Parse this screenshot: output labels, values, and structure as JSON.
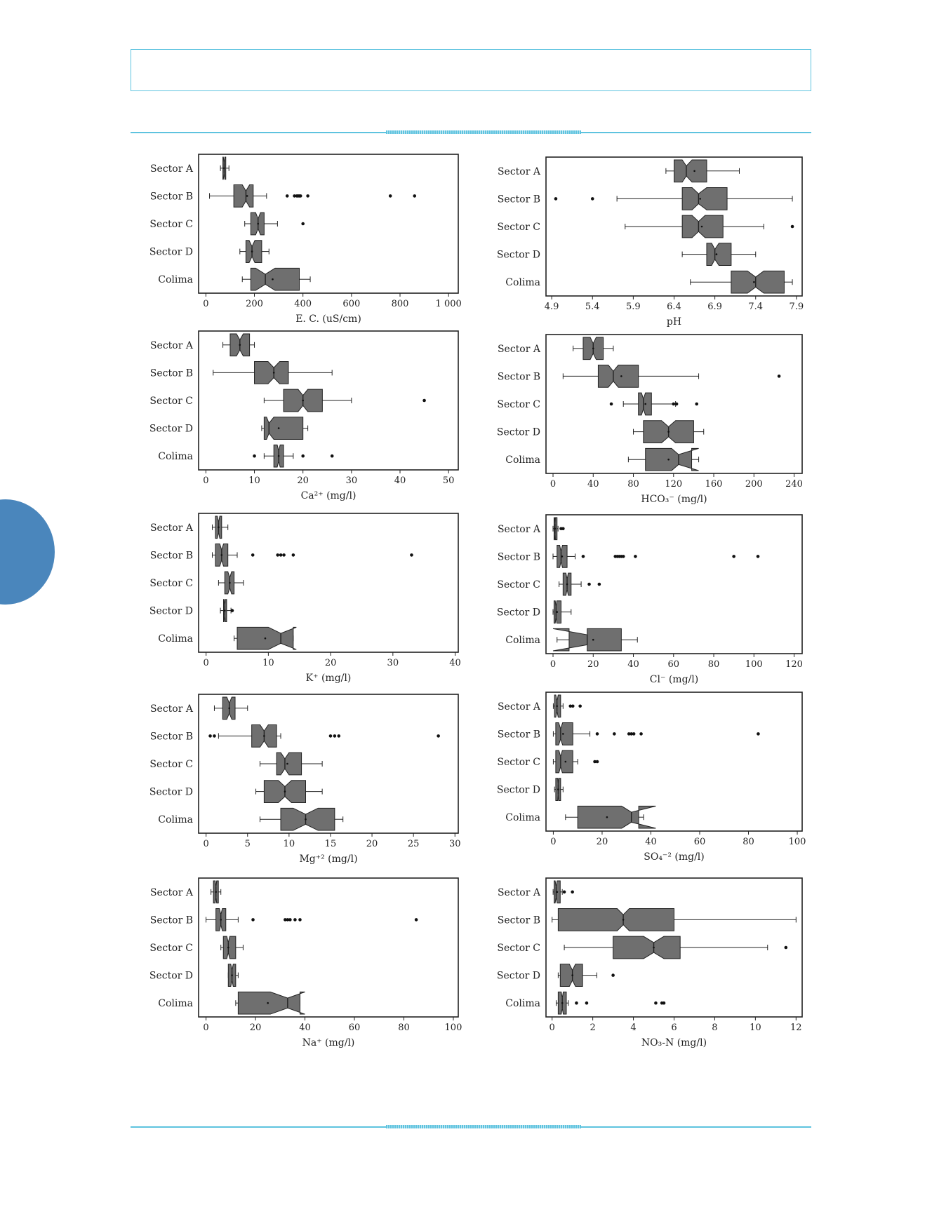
{
  "page": {
    "accent_color": "#5ec3df",
    "tab_color": "#4a86bc",
    "box_fill": "#6f6f6f"
  },
  "chart_data": [
    {
      "type": "boxplot",
      "orientation": "horizontal",
      "notched": true,
      "xlabel": "E. C. (uS/cm)",
      "xlim": [
        -30,
        1040
      ],
      "xticks": [
        0,
        200,
        400,
        600,
        800,
        1000
      ],
      "xtick_labels": [
        "0",
        "200",
        "400",
        "600",
        "800",
        "1 000"
      ],
      "categories": [
        "Sector A",
        "Sector B",
        "Sector C",
        "Sector D",
        "Colima"
      ],
      "boxes": [
        {
          "q1": 70,
          "median": 75,
          "q3": 82,
          "whisker_low": 60,
          "whisker_high": 95,
          "mean": 75,
          "notch_low": 72,
          "notch_high": 78,
          "outliers": []
        },
        {
          "q1": 115,
          "median": 165,
          "q3": 195,
          "whisker_low": 15,
          "whisker_high": 250,
          "mean": 170,
          "notch_low": 150,
          "notch_high": 180,
          "outliers": [
            335,
            365,
            375,
            380,
            385,
            390,
            420,
            760,
            860
          ]
        },
        {
          "q1": 185,
          "median": 215,
          "q3": 240,
          "whisker_low": 160,
          "whisker_high": 295,
          "mean": 215,
          "notch_low": 205,
          "notch_high": 225,
          "outliers": [
            400
          ]
        },
        {
          "q1": 165,
          "median": 190,
          "q3": 230,
          "whisker_low": 140,
          "whisker_high": 260,
          "mean": 190,
          "notch_low": 178,
          "notch_high": 202,
          "outliers": []
        },
        {
          "q1": 185,
          "median": 245,
          "q3": 385,
          "whisker_low": 150,
          "whisker_high": 430,
          "mean": 275,
          "notch_low": 205,
          "notch_high": 285,
          "outliers": []
        }
      ]
    },
    {
      "type": "boxplot",
      "orientation": "horizontal",
      "notched": true,
      "xlabel": "pH",
      "xlim": [
        4.83,
        7.97
      ],
      "xticks": [
        4.9,
        5.4,
        5.9,
        6.4,
        6.9,
        7.4,
        7.9
      ],
      "xtick_labels": [
        "4.9",
        "5.4",
        "5.9",
        "6.4",
        "6.9",
        "7.4",
        "7.9"
      ],
      "categories": [
        "Sector A",
        "Sector B",
        "Sector C",
        "Sector D",
        "Colima"
      ],
      "boxes": [
        {
          "q1": 6.4,
          "median": 6.55,
          "q3": 6.8,
          "whisker_low": 6.3,
          "whisker_high": 7.2,
          "mean": 6.65,
          "notch_low": 6.5,
          "notch_high": 6.62,
          "outliers": []
        },
        {
          "q1": 6.5,
          "median": 6.7,
          "q3": 7.05,
          "whisker_low": 5.7,
          "whisker_high": 7.85,
          "mean": 6.72,
          "notch_low": 6.62,
          "notch_high": 6.8,
          "outliers": [
            4.95,
            5.4
          ]
        },
        {
          "q1": 6.5,
          "median": 6.7,
          "q3": 7.0,
          "whisker_low": 5.8,
          "whisker_high": 7.5,
          "mean": 6.74,
          "notch_low": 6.62,
          "notch_high": 6.78,
          "outliers": [
            7.85
          ]
        },
        {
          "q1": 6.8,
          "median": 6.9,
          "q3": 7.1,
          "whisker_low": 6.5,
          "whisker_high": 7.4,
          "mean": 6.92,
          "notch_low": 6.86,
          "notch_high": 6.95,
          "outliers": []
        },
        {
          "q1": 7.1,
          "median": 7.4,
          "q3": 7.75,
          "whisker_low": 6.6,
          "whisker_high": 7.85,
          "mean": 7.38,
          "notch_low": 7.3,
          "notch_high": 7.5,
          "outliers": []
        }
      ]
    },
    {
      "type": "boxplot",
      "orientation": "horizontal",
      "notched": true,
      "xlabel": "Ca²⁺ (mg/l)",
      "xlim": [
        -1.5,
        52
      ],
      "xticks": [
        0,
        10,
        20,
        30,
        40,
        50
      ],
      "xtick_labels": [
        "0",
        "10",
        "20",
        "30",
        "40",
        "50"
      ],
      "categories": [
        "Sector A",
        "Sector B",
        "Sector C",
        "Sector D",
        "Colima"
      ],
      "boxes": [
        {
          "q1": 5,
          "median": 7,
          "q3": 9,
          "whisker_low": 3.5,
          "whisker_high": 10,
          "mean": 7,
          "notch_low": 6.3,
          "notch_high": 7.7,
          "outliers": []
        },
        {
          "q1": 10,
          "median": 14,
          "q3": 17,
          "whisker_low": 1.5,
          "whisker_high": 26,
          "mean": 14,
          "notch_low": 12.8,
          "notch_high": 15.2,
          "outliers": []
        },
        {
          "q1": 16,
          "median": 20,
          "q3": 24,
          "whisker_low": 12,
          "whisker_high": 30,
          "mean": 20,
          "notch_low": 19,
          "notch_high": 21,
          "outliers": [
            45
          ]
        },
        {
          "q1": 12,
          "median": 13,
          "q3": 20,
          "whisker_low": 11.5,
          "whisker_high": 21,
          "mean": 15,
          "notch_low": 12.5,
          "notch_high": 14,
          "outliers": []
        },
        {
          "q1": 14,
          "median": 15,
          "q3": 16,
          "whisker_low": 12,
          "whisker_high": 18,
          "mean": 15,
          "notch_low": 14.7,
          "notch_high": 15.3,
          "outliers": [
            10,
            20,
            26
          ]
        }
      ]
    },
    {
      "type": "boxplot",
      "orientation": "horizontal",
      "notched": true,
      "xlabel": "HCO₃⁻ (mg/l)",
      "xlim": [
        -7,
        248
      ],
      "xticks": [
        0,
        40,
        80,
        120,
        160,
        200,
        240
      ],
      "xtick_labels": [
        "0",
        "40",
        "80",
        "120",
        "160",
        "200",
        "240"
      ],
      "categories": [
        "Sector A",
        "Sector B",
        "Sector C",
        "Sector D",
        "Colima"
      ],
      "boxes": [
        {
          "q1": 30,
          "median": 40,
          "q3": 50,
          "whisker_low": 20,
          "whisker_high": 60,
          "mean": 40,
          "notch_low": 37,
          "notch_high": 43,
          "outliers": []
        },
        {
          "q1": 45,
          "median": 60,
          "q3": 85,
          "whisker_low": 10,
          "whisker_high": 145,
          "mean": 68,
          "notch_low": 55,
          "notch_high": 65,
          "outliers": [
            225
          ]
        },
        {
          "q1": 85,
          "median": 90,
          "q3": 98,
          "whisker_low": 70,
          "whisker_high": 122,
          "mean": 92,
          "notch_low": 88,
          "notch_high": 92,
          "outliers": [
            58,
            120,
            123,
            143
          ]
        },
        {
          "q1": 90,
          "median": 115,
          "q3": 140,
          "whisker_low": 80,
          "whisker_high": 150,
          "mean": 115,
          "notch_low": 108,
          "notch_high": 122,
          "outliers": []
        },
        {
          "q1": 92,
          "median": 125,
          "q3": 138,
          "whisker_low": 75,
          "whisker_high": 145,
          "mean": 115,
          "notch_low": 118,
          "notch_high": 145,
          "outliers": []
        }
      ]
    },
    {
      "type": "boxplot",
      "orientation": "horizontal",
      "notched": true,
      "xlabel": "K⁺ (mg/l)",
      "xlim": [
        -1.2,
        40.5
      ],
      "xticks": [
        0,
        10,
        20,
        30,
        40
      ],
      "xtick_labels": [
        "0",
        "10",
        "20",
        "30",
        "40"
      ],
      "categories": [
        "Sector A",
        "Sector B",
        "Sector C",
        "Sector D",
        "Colima"
      ],
      "boxes": [
        {
          "q1": 1.5,
          "median": 2,
          "q3": 2.5,
          "whisker_low": 1,
          "whisker_high": 3.5,
          "mean": 2,
          "notch_low": 1.8,
          "notch_high": 2.2,
          "outliers": []
        },
        {
          "q1": 1.5,
          "median": 2.5,
          "q3": 3.5,
          "whisker_low": 1,
          "whisker_high": 5,
          "mean": 2.5,
          "notch_low": 2.2,
          "notch_high": 2.8,
          "outliers": [
            7.5,
            11.5,
            12,
            12.5,
            14,
            33
          ]
        },
        {
          "q1": 3,
          "median": 3.8,
          "q3": 4.5,
          "whisker_low": 2,
          "whisker_high": 6,
          "mean": 3.8,
          "notch_low": 3.5,
          "notch_high": 4.1,
          "outliers": []
        },
        {
          "q1": 2.8,
          "median": 3,
          "q3": 3.3,
          "whisker_low": 2.3,
          "whisker_high": 4,
          "mean": 3,
          "notch_low": 2.9,
          "notch_high": 3.1,
          "outliers": [
            4.2
          ]
        },
        {
          "q1": 5,
          "median": 12,
          "q3": 14,
          "whisker_low": 4.5,
          "whisker_high": 14,
          "mean": 9.5,
          "notch_low": 10,
          "notch_high": 14.5,
          "outliers": []
        }
      ]
    },
    {
      "type": "boxplot",
      "orientation": "horizontal",
      "notched": true,
      "xlabel": "Cl⁻ (mg/l)",
      "xlim": [
        -3.5,
        124
      ],
      "xticks": [
        0,
        20,
        40,
        60,
        80,
        100,
        120
      ],
      "xtick_labels": [
        "0",
        "20",
        "40",
        "60",
        "80",
        "100",
        "120"
      ],
      "categories": [
        "Sector A",
        "Sector B",
        "Sector C",
        "Sector D",
        "Colima"
      ],
      "boxes": [
        {
          "q1": 0.5,
          "median": 1,
          "q3": 2,
          "whisker_low": 0,
          "whisker_high": 2.5,
          "mean": 1,
          "notch_low": 0.8,
          "notch_high": 1.2,
          "outliers": [
            4,
            5
          ]
        },
        {
          "q1": 2,
          "median": 4,
          "q3": 7,
          "whisker_low": 0,
          "whisker_high": 11,
          "mean": 4.5,
          "notch_low": 3.3,
          "notch_high": 4.7,
          "outliers": [
            15,
            31,
            32,
            33,
            34,
            35,
            41,
            90,
            102
          ]
        },
        {
          "q1": 5,
          "median": 7,
          "q3": 9,
          "whisker_low": 3,
          "whisker_high": 14,
          "mean": 7,
          "notch_low": 6.4,
          "notch_high": 7.6,
          "outliers": [
            18,
            23
          ]
        },
        {
          "q1": 0.5,
          "median": 1.5,
          "q3": 4,
          "whisker_low": 0,
          "whisker_high": 9,
          "mean": 2,
          "notch_low": 1.1,
          "notch_high": 1.9,
          "outliers": []
        },
        {
          "q1": 8,
          "median": 17,
          "q3": 34,
          "whisker_low": 2,
          "whisker_high": 42,
          "mean": 20,
          "notch_low": 0,
          "notch_high": 17,
          "outliers": []
        }
      ]
    },
    {
      "type": "boxplot",
      "orientation": "horizontal",
      "notched": true,
      "xlabel": "Mg⁺² (mg/l)",
      "xlim": [
        -0.9,
        30.4
      ],
      "xticks": [
        0,
        5,
        10,
        15,
        20,
        25,
        30
      ],
      "xtick_labels": [
        "0",
        "5",
        "10",
        "15",
        "20",
        "25",
        "30"
      ],
      "categories": [
        "Sector A",
        "Sector B",
        "Sector C",
        "Sector D",
        "Colima"
      ],
      "boxes": [
        {
          "q1": 2,
          "median": 2.8,
          "q3": 3.5,
          "whisker_low": 1,
          "whisker_high": 5,
          "mean": 2.8,
          "notch_low": 2.5,
          "notch_high": 3.1,
          "outliers": []
        },
        {
          "q1": 5.5,
          "median": 7,
          "q3": 8.5,
          "whisker_low": 1.5,
          "whisker_high": 9,
          "mean": 7,
          "notch_low": 6.5,
          "notch_high": 7.5,
          "outliers": [
            0.5,
            1,
            15,
            15.5,
            16,
            28
          ]
        },
        {
          "q1": 8.5,
          "median": 9.5,
          "q3": 11.5,
          "whisker_low": 6.5,
          "whisker_high": 14,
          "mean": 9.8,
          "notch_low": 9,
          "notch_high": 10,
          "outliers": []
        },
        {
          "q1": 7,
          "median": 9.5,
          "q3": 12,
          "whisker_low": 6,
          "whisker_high": 14,
          "mean": 9.5,
          "notch_low": 8.7,
          "notch_high": 10.3,
          "outliers": []
        },
        {
          "q1": 9,
          "median": 12,
          "q3": 15.5,
          "whisker_low": 6.5,
          "whisker_high": 16.5,
          "mean": 12,
          "notch_low": 10.5,
          "notch_high": 13.5,
          "outliers": []
        }
      ]
    },
    {
      "type": "boxplot",
      "orientation": "horizontal",
      "notched": true,
      "xlabel": "SO₄⁻² (mg/l)",
      "xlim": [
        -3,
        102
      ],
      "xticks": [
        0,
        20,
        40,
        60,
        80,
        100
      ],
      "xtick_labels": [
        "0",
        "20",
        "40",
        "60",
        "80",
        "100"
      ],
      "categories": [
        "Sector A",
        "Sector B",
        "Sector C",
        "Sector D",
        "Colima"
      ],
      "boxes": [
        {
          "q1": 0.5,
          "median": 1.5,
          "q3": 3,
          "whisker_low": 0,
          "whisker_high": 4,
          "mean": 1.5,
          "notch_low": 1,
          "notch_high": 2,
          "outliers": [
            7,
            8,
            11
          ]
        },
        {
          "q1": 1,
          "median": 3,
          "q3": 8,
          "whisker_low": 0,
          "whisker_high": 15,
          "mean": 4,
          "notch_low": 2.2,
          "notch_high": 3.8,
          "outliers": [
            18,
            25,
            31,
            32,
            33,
            36,
            84
          ]
        },
        {
          "q1": 1,
          "median": 3,
          "q3": 8,
          "whisker_low": 0,
          "whisker_high": 10,
          "mean": 5,
          "notch_low": 2.3,
          "notch_high": 3.7,
          "outliers": [
            17,
            18
          ]
        },
        {
          "q1": 1,
          "median": 2,
          "q3": 3,
          "whisker_low": 0.5,
          "whisker_high": 4,
          "mean": 2,
          "notch_low": 1.8,
          "notch_high": 2.2,
          "outliers": []
        },
        {
          "q1": 10,
          "median": 32,
          "q3": 35,
          "whisker_low": 5,
          "whisker_high": 37,
          "mean": 22,
          "notch_low": 28,
          "notch_high": 42,
          "outliers": []
        }
      ]
    },
    {
      "type": "boxplot",
      "orientation": "horizontal",
      "notched": true,
      "xlabel": "Na⁺ (mg/l)",
      "xlim": [
        -3,
        102
      ],
      "xticks": [
        0,
        20,
        40,
        60,
        80,
        100
      ],
      "xtick_labels": [
        "0",
        "20",
        "40",
        "60",
        "80",
        "100"
      ],
      "categories": [
        "Sector A",
        "Sector B",
        "Sector C",
        "Sector D",
        "Colima"
      ],
      "boxes": [
        {
          "q1": 3,
          "median": 4,
          "q3": 5,
          "whisker_low": 2,
          "whisker_high": 6,
          "mean": 4,
          "notch_low": 3.7,
          "notch_high": 4.3,
          "outliers": []
        },
        {
          "q1": 4,
          "median": 6,
          "q3": 8,
          "whisker_low": 0,
          "whisker_high": 13,
          "mean": 6,
          "notch_low": 5.4,
          "notch_high": 6.6,
          "outliers": [
            19,
            32,
            33,
            34,
            36,
            38,
            85
          ]
        },
        {
          "q1": 7,
          "median": 9,
          "q3": 12,
          "whisker_low": 6,
          "whisker_high": 15,
          "mean": 9,
          "notch_low": 8.4,
          "notch_high": 9.6,
          "outliers": []
        },
        {
          "q1": 9,
          "median": 10.5,
          "q3": 12,
          "whisker_low": 9,
          "whisker_high": 13,
          "mean": 10.5,
          "notch_low": 10,
          "notch_high": 11,
          "outliers": []
        },
        {
          "q1": 13,
          "median": 33,
          "q3": 38,
          "whisker_low": 12,
          "whisker_high": 38,
          "mean": 25,
          "notch_low": 26,
          "notch_high": 40,
          "outliers": []
        }
      ]
    },
    {
      "type": "boxplot",
      "orientation": "horizontal",
      "notched": true,
      "xlabel": "NO₃-N (mg/l)",
      "xlim": [
        -0.3,
        12.3
      ],
      "xticks": [
        0,
        2,
        4,
        6,
        8,
        10,
        12
      ],
      "xtick_labels": [
        "0",
        "2",
        "4",
        "6",
        "8",
        "10",
        "12"
      ],
      "categories": [
        "Sector A",
        "Sector B",
        "Sector C",
        "Sector D",
        "Colima"
      ],
      "boxes": [
        {
          "q1": 0.1,
          "median": 0.2,
          "q3": 0.4,
          "whisker_low": 0.05,
          "whisker_high": 0.5,
          "mean": 0.25,
          "notch_low": 0.15,
          "notch_high": 0.25,
          "outliers": [
            0.6,
            1.0
          ]
        },
        {
          "q1": 0.3,
          "median": 3.5,
          "q3": 6,
          "whisker_low": 0,
          "whisker_high": 12,
          "mean": 3.5,
          "notch_low": 3.2,
          "notch_high": 3.8,
          "outliers": []
        },
        {
          "q1": 3,
          "median": 5,
          "q3": 6.3,
          "whisker_low": 0.6,
          "whisker_high": 10.6,
          "mean": 5,
          "notch_low": 4.5,
          "notch_high": 5.5,
          "outliers": [
            11.5
          ]
        },
        {
          "q1": 0.4,
          "median": 1,
          "q3": 1.5,
          "whisker_low": 0.3,
          "whisker_high": 2.2,
          "mean": 1,
          "notch_low": 0.85,
          "notch_high": 1.15,
          "outliers": [
            3
          ]
        },
        {
          "q1": 0.3,
          "median": 0.5,
          "q3": 0.7,
          "whisker_low": 0.2,
          "whisker_high": 0.8,
          "mean": 0.5,
          "notch_low": 0.45,
          "notch_high": 0.55,
          "outliers": [
            1.2,
            1.7,
            5.1,
            5.4,
            5.5
          ]
        }
      ]
    }
  ]
}
